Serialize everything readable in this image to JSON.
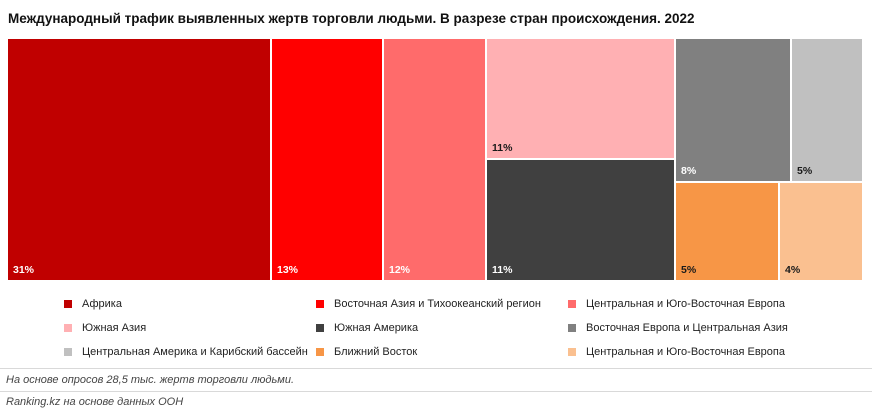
{
  "chart_data": {
    "type": "treemap",
    "title": "Международный трафик выявленных жертв торговли людьми. В разрезе стран происхождения. 2022",
    "unit": "%",
    "items": [
      {
        "name": "Африка",
        "value": 31,
        "label": "31%",
        "color": "#c00000"
      },
      {
        "name": "Восточная Азия и Тихоокеанский регион",
        "value": 13,
        "label": "13%",
        "color": "#ff0000"
      },
      {
        "name": "Центральная и Юго-Восточная Европа",
        "value": 12,
        "label": "12%",
        "color": "#ff6b6b"
      },
      {
        "name": "Южная Азия",
        "value": 11,
        "label": "11%",
        "color": "#ffb0b3"
      },
      {
        "name": "Южная Америка",
        "value": 11,
        "label": "11%",
        "color": "#404040"
      },
      {
        "name": "Восточная Европа и Центральная Азия",
        "value": 8,
        "label": "8%",
        "color": "#808080"
      },
      {
        "name": "Центральная Америка и Карибский бассейн",
        "value": 5,
        "label": "5%",
        "color": "#c0c0c0"
      },
      {
        "name": "Ближний Восток",
        "value": 5,
        "label": "5%",
        "color": "#f79646"
      },
      {
        "name": "Центральная и Юго-Восточная Европа",
        "value": 4,
        "label": "4%",
        "color": "#fac090"
      }
    ]
  },
  "footnotes": {
    "survey": "На основе опросов 28,5 тыс. жертв торговли людьми.",
    "source": "Ranking.kz на основе данных ООН"
  }
}
